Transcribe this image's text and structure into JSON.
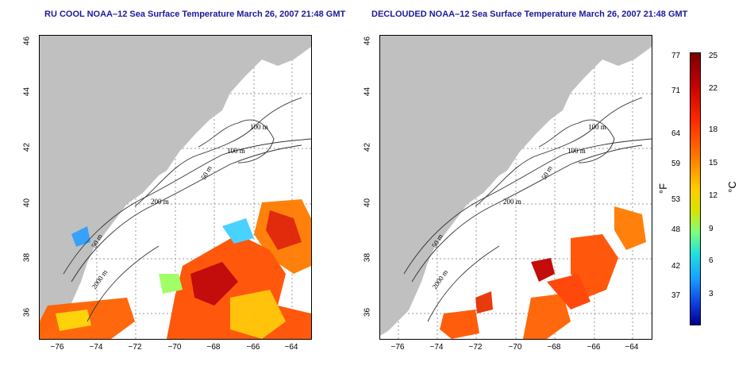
{
  "titles": {
    "left": "RU COOL NOAA–12 Sea Surface Temperature March 26, 2007 21:48 GMT",
    "right": "DECLOUDED NOAA–12 Sea Surface Temperature March 26, 2007 21:48 GMT"
  },
  "axes": {
    "x_ticks": [
      "−76",
      "−74",
      "−72",
      "−70",
      "−68",
      "−66",
      "−64"
    ],
    "y_ticks": [
      "46",
      "44",
      "42",
      "40",
      "38",
      "36"
    ]
  },
  "contour_labels": {
    "left": [
      "100 m",
      "100 m",
      "50 m",
      "200 m",
      "50 m",
      "2000 m"
    ],
    "right": [
      "100 m",
      "100 m",
      "50 m",
      "200 m",
      "50 m",
      "2000 m"
    ]
  },
  "colorbar": {
    "f_ticks": [
      "77",
      "71",
      "64",
      "59",
      "53",
      "48",
      "42",
      "37"
    ],
    "c_ticks": [
      "25",
      "22",
      "18",
      "15",
      "12",
      "9",
      "6",
      "3"
    ],
    "f_label": "°F",
    "c_label": "°C"
  },
  "colors": {
    "land": "#c0c0c0",
    "contour": "#333333",
    "grid": "#9a9a9a",
    "title": "#1a1a9a"
  }
}
